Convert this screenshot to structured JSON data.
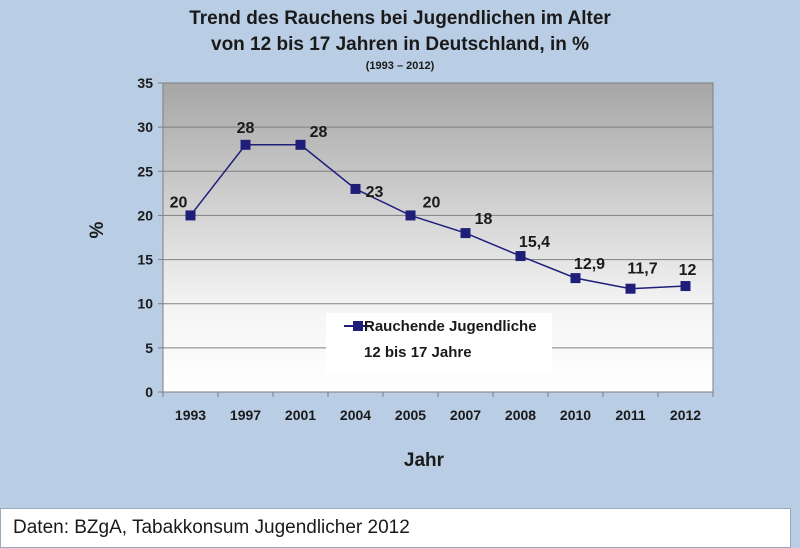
{
  "chart_data": {
    "type": "line",
    "title_line1": "Trend des Rauchens bei Jugendlichen im Alter",
    "title_line2": "von 12 bis 17 Jahren in Deutschland, in %",
    "subtitle": "(1993 – 2012)",
    "xlabel": "Jahr",
    "ylabel": "%",
    "ylim": [
      0,
      35
    ],
    "yticks": [
      "0",
      "5",
      "10",
      "15",
      "20",
      "25",
      "30",
      "35"
    ],
    "categories": [
      "1993",
      "1997",
      "2001",
      "2004",
      "2005",
      "2007",
      "2008",
      "2010",
      "2011",
      "2012"
    ],
    "series": [
      {
        "name": "Rauchende Jugendliche 12 bis 17 Jahre",
        "values": [
          20,
          28,
          28,
          23,
          20,
          18,
          15.4,
          12.9,
          11.7,
          12
        ],
        "labels": [
          "20",
          "28",
          "28",
          "23",
          "20",
          "18",
          "15,4",
          "12,9",
          "11,7",
          "12"
        ]
      }
    ],
    "legend_line1": "Rauchende Jugendliche",
    "legend_line2": "12 bis 17 Jahre",
    "line_color": "#1f1f7a"
  },
  "footer": "Daten: BZgA, Tabakkonsum Jugendlicher 2012"
}
